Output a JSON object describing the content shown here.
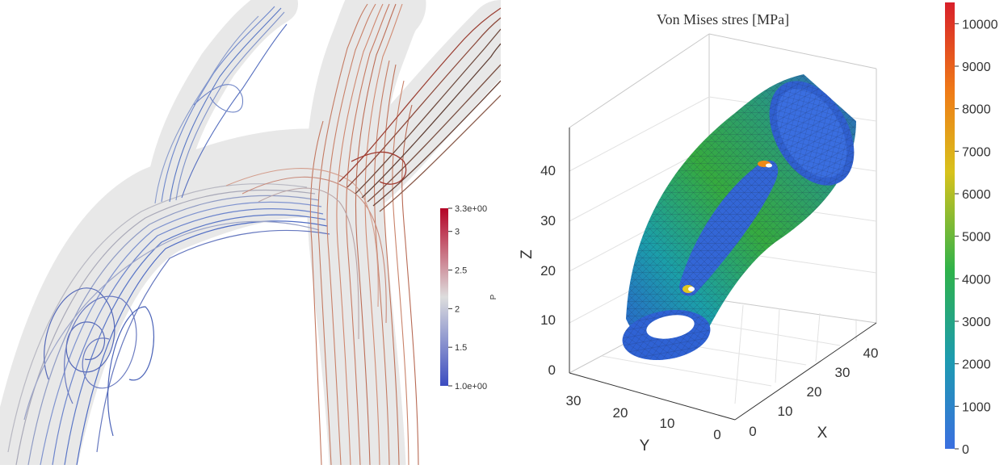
{
  "left_plot": {
    "colorbar": {
      "max_label": "3.3e+00",
      "min_label": "1.0e+00",
      "ticks": [
        "3",
        "2.5",
        "2",
        "1.5"
      ],
      "tick_values": [
        3,
        2.5,
        2,
        1.5
      ],
      "range": [
        1.0,
        3.3
      ],
      "variable": "P",
      "colors": [
        "#3b4cc0",
        "#dddddd",
        "#b40426"
      ]
    }
  },
  "right_plot": {
    "title": "Von Mises stres [MPa]",
    "axes": {
      "z_label": "Z",
      "y_label": "Y",
      "x_label": "X",
      "z_ticks": [
        "0",
        "10",
        "20",
        "30",
        "40"
      ],
      "y_ticks": [
        "30",
        "20",
        "10",
        "0"
      ],
      "x_ticks": [
        "0",
        "10",
        "20",
        "30",
        "40"
      ]
    },
    "colorbar": {
      "ticks": [
        "10000",
        "9000",
        "8000",
        "7000",
        "6000",
        "5000",
        "4000",
        "3000",
        "2000",
        "1000",
        "0"
      ],
      "tick_values": [
        10000,
        9000,
        8000,
        7000,
        6000,
        5000,
        4000,
        3000,
        2000,
        1000,
        0
      ],
      "range": [
        0,
        10500
      ],
      "colors": [
        "#3b6fe0",
        "#1d9bb0",
        "#2fb24a",
        "#d8c21c",
        "#ef7b17",
        "#d8202a"
      ]
    }
  }
}
